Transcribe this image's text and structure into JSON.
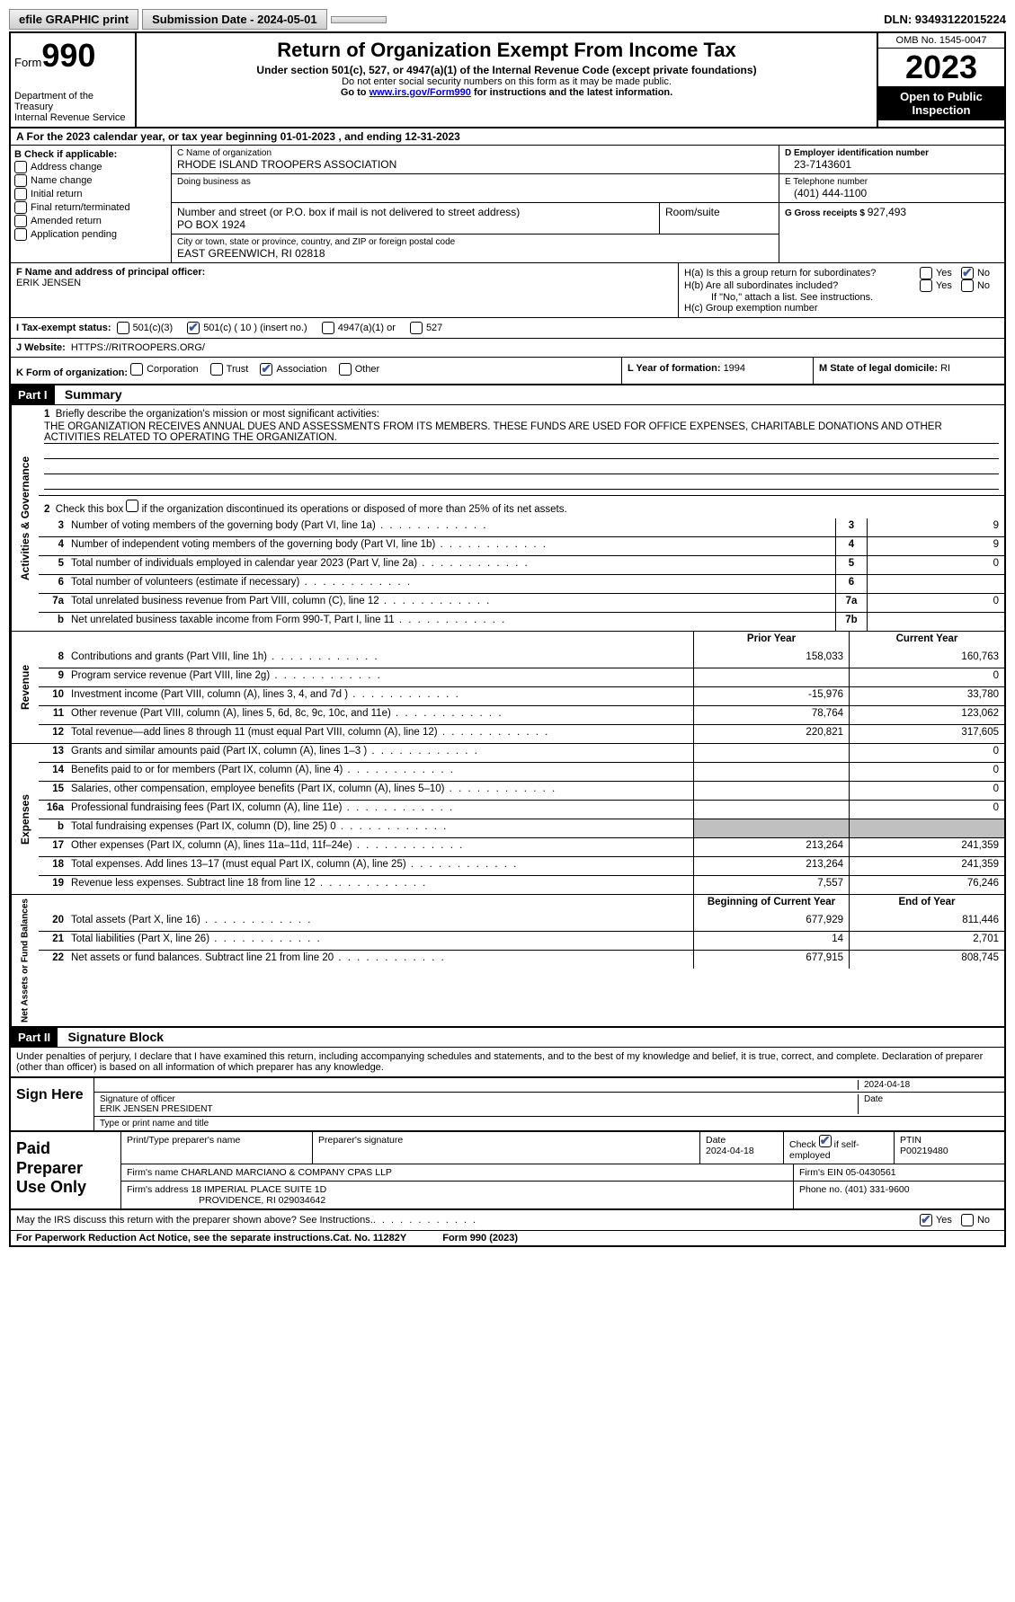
{
  "topbar": {
    "efile": "efile GRAPHIC print",
    "submission": "Submission Date - 2024-05-01",
    "dln": "DLN: 93493122015224"
  },
  "header": {
    "form_label": "Form",
    "form_number": "990",
    "title": "Return of Organization Exempt From Income Tax",
    "subtitle": "Under section 501(c), 527, or 4947(a)(1) of the Internal Revenue Code (except private foundations)",
    "note1": "Do not enter social security numbers on this form as it may be made public.",
    "note2_prefix": "Go to ",
    "note2_link": "www.irs.gov/Form990",
    "note2_suffix": " for instructions and the latest information.",
    "dept": "Department of the Treasury",
    "irs": "Internal Revenue Service",
    "omb": "OMB No. 1545-0047",
    "year": "2023",
    "open": "Open to Public Inspection"
  },
  "rowA": {
    "prefix": "A For the 2023 calendar year, or tax year beginning ",
    "begin": "01-01-2023",
    "mid": "  , and ending ",
    "end": "12-31-2023"
  },
  "boxB": {
    "label": "B Check if applicable:",
    "items": [
      "Address change",
      "Name change",
      "Initial return",
      "Final return/terminated",
      "Amended return",
      "Application pending"
    ]
  },
  "boxC": {
    "name_label": "C Name of organization",
    "name": "RHODE ISLAND TROOPERS ASSOCIATION",
    "dba_label": "Doing business as",
    "addr_label": "Number and street (or P.O. box if mail is not delivered to street address)",
    "addr": "PO BOX 1924",
    "room_label": "Room/suite",
    "city_label": "City or town, state or province, country, and ZIP or foreign postal code",
    "city": "EAST GREENWICH, RI  02818"
  },
  "boxD": {
    "ein_label": "D Employer identification number",
    "ein": "23-7143601",
    "phone_label": "E Telephone number",
    "phone": "(401) 444-1100",
    "gross_label": "G Gross receipts $ ",
    "gross": "927,493"
  },
  "rowF": {
    "label": "F  Name and address of principal officer:",
    "name": "ERIK JENSEN"
  },
  "rowH": {
    "a": "H(a)  Is this a group return for subordinates?",
    "b": "H(b)  Are all subordinates included?",
    "b_note": "If \"No,\" attach a list. See instructions.",
    "c": "H(c)  Group exemption number "
  },
  "rowI": {
    "label": "I  Tax-exempt status:",
    "opt1": "501(c)(3)",
    "opt2": "501(c) ( 10 ) (insert no.)",
    "opt3": "4947(a)(1) or",
    "opt4": "527"
  },
  "rowJ": {
    "label": "J  Website: ",
    "value": "HTTPS://RITROOPERS.ORG/"
  },
  "rowK": {
    "label": "K Form of organization:",
    "opts": [
      "Corporation",
      "Trust",
      "Association",
      "Other"
    ]
  },
  "rowL": {
    "label": "L Year of formation: ",
    "value": "1994"
  },
  "rowM": {
    "label": "M State of legal domicile: ",
    "value": "RI"
  },
  "parts": {
    "p1": "Part I",
    "p1_title": "Summary",
    "p2": "Part II",
    "p2_title": "Signature Block"
  },
  "mission": {
    "q": "Briefly describe the organization's mission or most significant activities:",
    "text": "THE ORGANIZATION RECEIVES ANNUAL DUES AND ASSESSMENTS FROM ITS MEMBERS. THESE FUNDS ARE USED FOR OFFICE EXPENSES, CHARITABLE DONATIONS AND OTHER ACTIVITIES RELATED TO OPERATING THE ORGANIZATION."
  },
  "line2": "Check this box      if the organization discontinued its operations or disposed of more than 25% of its net assets.",
  "vtabs": {
    "gov": "Activities & Governance",
    "rev": "Revenue",
    "exp": "Expenses",
    "net": "Net Assets or Fund Balances"
  },
  "gov_lines": [
    {
      "n": "3",
      "desc": "Number of voting members of the governing body (Part VI, line 1a)",
      "box": "3",
      "val": "9"
    },
    {
      "n": "4",
      "desc": "Number of independent voting members of the governing body (Part VI, line 1b)",
      "box": "4",
      "val": "9"
    },
    {
      "n": "5",
      "desc": "Total number of individuals employed in calendar year 2023 (Part V, line 2a)",
      "box": "5",
      "val": "0"
    },
    {
      "n": "6",
      "desc": "Total number of volunteers (estimate if necessary)",
      "box": "6",
      "val": ""
    },
    {
      "n": "7a",
      "desc": "Total unrelated business revenue from Part VIII, column (C), line 12",
      "box": "7a",
      "val": "0"
    },
    {
      "n": "b",
      "desc": "Net unrelated business taxable income from Form 990-T, Part I, line 11",
      "box": "7b",
      "val": ""
    }
  ],
  "cols": {
    "prior": "Prior Year",
    "current": "Current Year",
    "begin": "Beginning of Current Year",
    "end": "End of Year"
  },
  "rev_lines": [
    {
      "n": "8",
      "desc": "Contributions and grants (Part VIII, line 1h)",
      "p": "158,033",
      "c": "160,763"
    },
    {
      "n": "9",
      "desc": "Program service revenue (Part VIII, line 2g)",
      "p": "",
      "c": "0"
    },
    {
      "n": "10",
      "desc": "Investment income (Part VIII, column (A), lines 3, 4, and 7d )",
      "p": "-15,976",
      "c": "33,780"
    },
    {
      "n": "11",
      "desc": "Other revenue (Part VIII, column (A), lines 5, 6d, 8c, 9c, 10c, and 11e)",
      "p": "78,764",
      "c": "123,062"
    },
    {
      "n": "12",
      "desc": "Total revenue—add lines 8 through 11 (must equal Part VIII, column (A), line 12)",
      "p": "220,821",
      "c": "317,605"
    }
  ],
  "exp_lines": [
    {
      "n": "13",
      "desc": "Grants and similar amounts paid (Part IX, column (A), lines 1–3 )",
      "p": "",
      "c": "0"
    },
    {
      "n": "14",
      "desc": "Benefits paid to or for members (Part IX, column (A), line 4)",
      "p": "",
      "c": "0"
    },
    {
      "n": "15",
      "desc": "Salaries, other compensation, employee benefits (Part IX, column (A), lines 5–10)",
      "p": "",
      "c": "0"
    },
    {
      "n": "16a",
      "desc": "Professional fundraising fees (Part IX, column (A), line 11e)",
      "p": "",
      "c": "0"
    },
    {
      "n": "b",
      "desc": "Total fundraising expenses (Part IX, column (D), line 25) 0",
      "p": "GRAY",
      "c": "GRAY"
    },
    {
      "n": "17",
      "desc": "Other expenses (Part IX, column (A), lines 11a–11d, 11f–24e)",
      "p": "213,264",
      "c": "241,359"
    },
    {
      "n": "18",
      "desc": "Total expenses. Add lines 13–17 (must equal Part IX, column (A), line 25)",
      "p": "213,264",
      "c": "241,359"
    },
    {
      "n": "19",
      "desc": "Revenue less expenses. Subtract line 18 from line 12",
      "p": "7,557",
      "c": "76,246"
    }
  ],
  "net_lines": [
    {
      "n": "20",
      "desc": "Total assets (Part X, line 16)",
      "p": "677,929",
      "c": "811,446"
    },
    {
      "n": "21",
      "desc": "Total liabilities (Part X, line 26)",
      "p": "14",
      "c": "2,701"
    },
    {
      "n": "22",
      "desc": "Net assets or fund balances. Subtract line 21 from line 20",
      "p": "677,915",
      "c": "808,745"
    }
  ],
  "sig": {
    "perjury": "Under penalties of perjury, I declare that I have examined this return, including accompanying schedules and statements, and to the best of my knowledge and belief, it is true, correct, and complete. Declaration of preparer (other than officer) is based on all information of which preparer has any knowledge.",
    "sign_here": "Sign Here",
    "date1": "2024-04-18",
    "sig_label": "Signature of officer",
    "officer": "ERIK JENSEN PRESIDENT",
    "type_label": "Type or print name and title",
    "date_label": "Date"
  },
  "paid": {
    "title": "Paid Preparer Use Only",
    "name_label": "Print/Type preparer's name",
    "sig_label": "Preparer's signature",
    "date_label": "Date",
    "date": "2024-04-18",
    "check_label": "Check",
    "self_emp": "if self-employed",
    "ptin_label": "PTIN",
    "ptin": "P00219480",
    "firm_name_label": "Firm's name   ",
    "firm_name": "CHARLAND MARCIANO & COMPANY CPAS LLP",
    "firm_ein_label": "Firm's EIN  ",
    "firm_ein": "05-0430561",
    "firm_addr_label": "Firm's address ",
    "firm_addr": "18 IMPERIAL PLACE SUITE 1D",
    "firm_city": "PROVIDENCE, RI  029034642",
    "phone_label": "Phone no. ",
    "phone": "(401) 331-9600"
  },
  "footer": {
    "discuss": "May the IRS discuss this return with the preparer shown above? See Instructions.",
    "paperwork": "For Paperwork Reduction Act Notice, see the separate instructions.",
    "cat": "Cat. No. 11282Y",
    "form": "Form 990 (2023)"
  },
  "yesno": {
    "yes": "Yes",
    "no": "No"
  }
}
